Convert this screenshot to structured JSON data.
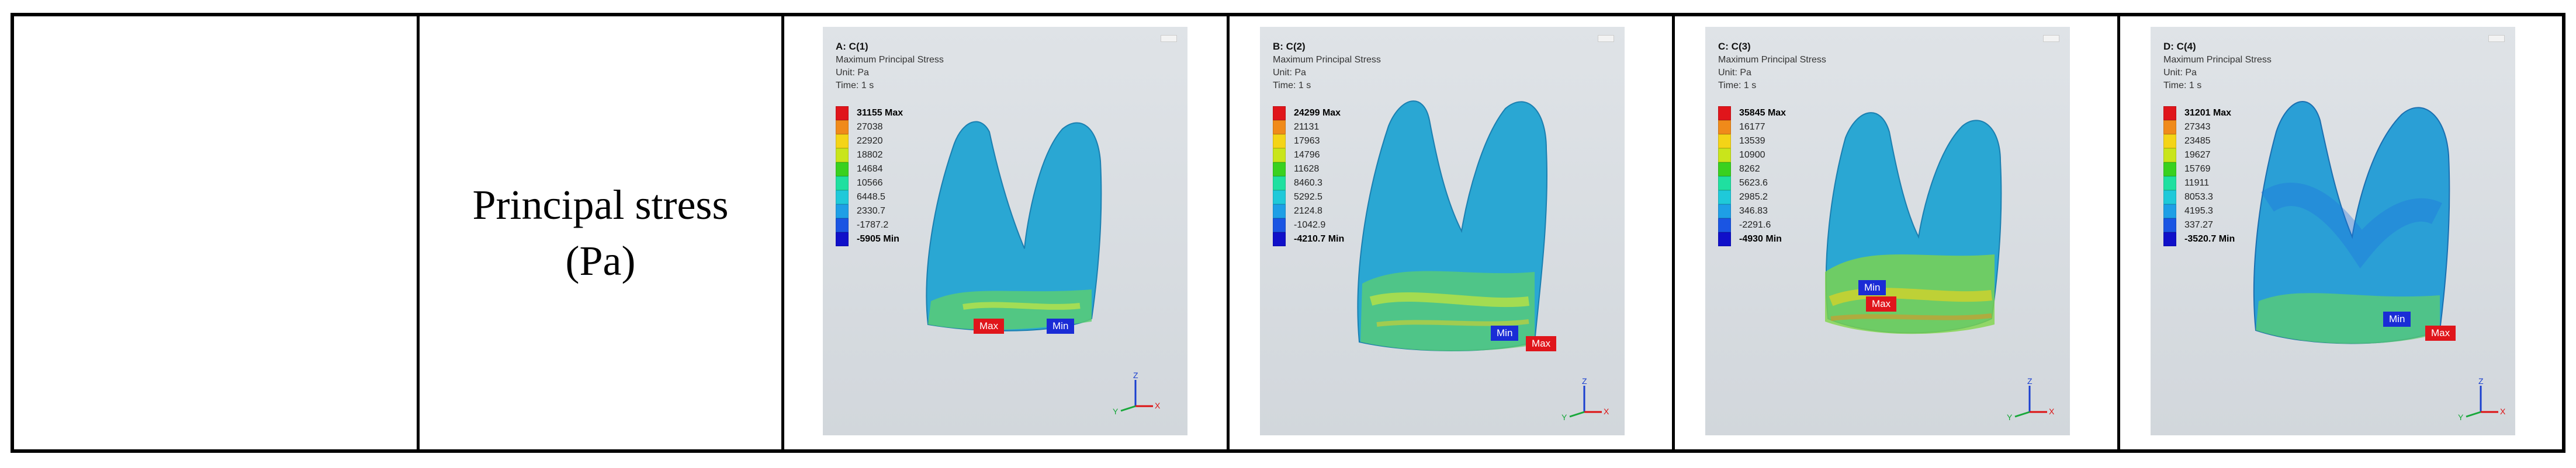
{
  "row_label": [
    "Principal stress",
    "(Pa)"
  ],
  "panels": [
    {
      "title": "A: C(1)",
      "quantity": "Maximum Principal Stress",
      "unit": "Unit: Pa",
      "time": "Time: 1 s",
      "legend": [
        "31155 Max",
        "27038",
        "22920",
        "18802",
        "14684",
        "10566",
        "6448.5",
        "2330.7",
        "-1787.2",
        "-5905 Min"
      ],
      "max_label": "Max",
      "min_label": "Min"
    },
    {
      "title": "B: C(2)",
      "quantity": "Maximum Principal Stress",
      "unit": "Unit: Pa",
      "time": "Time: 1 s",
      "legend": [
        "24299 Max",
        "21131",
        "17963",
        "14796",
        "11628",
        "8460.3",
        "5292.5",
        "2124.8",
        "-1042.9",
        "-4210.7 Min"
      ],
      "max_label": "Max",
      "min_label": "Min"
    },
    {
      "title": "C: C(3)",
      "quantity": "Maximum Principal Stress",
      "unit": "Unit: Pa",
      "time": "Time: 1 s",
      "legend": [
        "35845 Max",
        "16177",
        "13539",
        "10900",
        "8262",
        "5623.6",
        "2985.2",
        "346.83",
        "-2291.6",
        "-4930 Min"
      ],
      "max_label": "Max",
      "min_label": "Min"
    },
    {
      "title": "D: C(4)",
      "quantity": "Maximum Principal Stress",
      "unit": "Unit: Pa",
      "time": "Time: 1 s",
      "legend": [
        "31201 Max",
        "27343",
        "23485",
        "19627",
        "15769",
        "11911",
        "8053.3",
        "4195.3",
        "337.27",
        "-3520.7 Min"
      ],
      "max_label": "Max",
      "min_label": "Min"
    }
  ],
  "legend_colors": [
    "#e0151b",
    "#f08a1a",
    "#f4d417",
    "#c9e51b",
    "#39d11f",
    "#1fe0a0",
    "#1fc9d9",
    "#1e9fe6",
    "#1a55e3",
    "#1010c9"
  ],
  "axis_labels": {
    "z": "Z",
    "x": "X",
    "y": "Y"
  }
}
